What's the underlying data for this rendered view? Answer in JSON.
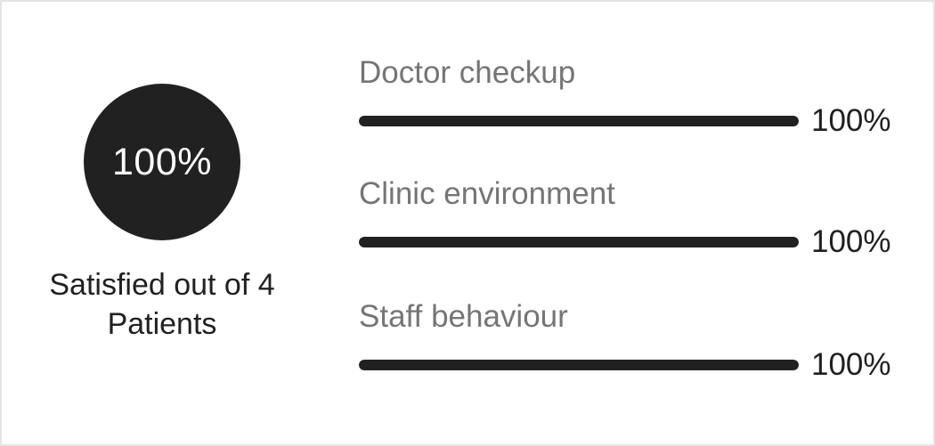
{
  "summary": {
    "percent": "100%",
    "caption_line1": "Satisfied out of 4",
    "caption_line2": "Patients"
  },
  "metrics": [
    {
      "label": "Doctor checkup",
      "value": "100%",
      "fraction": 1.0
    },
    {
      "label": "Clinic environment",
      "value": "100%",
      "fraction": 1.0
    },
    {
      "label": "Staff behaviour",
      "value": "100%",
      "fraction": 1.0
    }
  ],
  "colors": {
    "dark": "#212121",
    "label_gray": "#757575",
    "track": "#e0e0e0",
    "border": "#e4e4e4"
  }
}
